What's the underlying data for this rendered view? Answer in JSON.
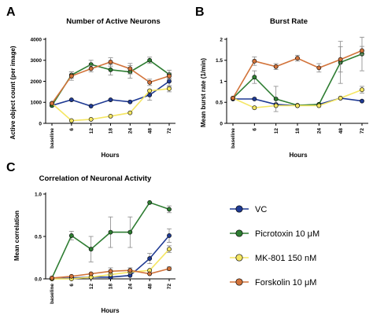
{
  "colors": {
    "VC": "#1f3a93",
    "Picrotoxin": "#2e7d32",
    "MK801": "#f5e663",
    "Forskolin": "#d2733a",
    "error": "#888888"
  },
  "legend": [
    {
      "key": "VC",
      "label": "VC"
    },
    {
      "key": "Picrotoxin",
      "label": "Picrotoxin 10 μM"
    },
    {
      "key": "MK801",
      "label": "MK-801 150 nM"
    },
    {
      "key": "Forskolin",
      "label": "Forskolin 10 μM"
    }
  ],
  "chart_data": [
    {
      "panel": "A",
      "type": "line",
      "title": "Number of Active Neurons",
      "xlabel": "Hours",
      "ylabel": "Active object count (per image)",
      "categories": [
        "baseline",
        "6",
        "12",
        "18",
        "24",
        "48",
        "72"
      ],
      "ylim": [
        0,
        4000
      ],
      "yticks": [
        0,
        1000,
        2000,
        3000,
        4000
      ],
      "series": [
        {
          "key": "VC",
          "values": [
            850,
            1120,
            820,
            1120,
            1020,
            1350,
            2000
          ],
          "err": [
            0,
            0,
            0,
            0,
            0,
            250,
            250
          ]
        },
        {
          "key": "Picrotoxin",
          "values": [
            850,
            2300,
            2800,
            2550,
            2450,
            3000,
            2330
          ],
          "err": [
            0,
            150,
            200,
            250,
            300,
            150,
            200
          ]
        },
        {
          "key": "MK801",
          "values": [
            950,
            130,
            190,
            340,
            500,
            1550,
            1650
          ],
          "err": [
            0,
            0,
            0,
            0,
            0,
            0,
            150
          ]
        },
        {
          "key": "Forskolin",
          "values": [
            950,
            2250,
            2600,
            2920,
            2600,
            1950,
            2250
          ],
          "err": [
            0,
            200,
            150,
            200,
            250,
            150,
            150
          ]
        }
      ]
    },
    {
      "panel": "B",
      "type": "line",
      "title": "Burst Rate",
      "xlabel": "Hours",
      "ylabel": "Mean burst rate (1/min)",
      "categories": [
        "baseline",
        "6",
        "12",
        "18",
        "24",
        "48",
        "72"
      ],
      "ylim": [
        0,
        2.0
      ],
      "yticks": [
        0,
        0.5,
        1.0,
        1.5,
        2.0
      ],
      "series": [
        {
          "key": "VC",
          "values": [
            0.58,
            0.58,
            0.45,
            0.42,
            0.45,
            0.6,
            0.53
          ],
          "err": [
            0,
            0,
            0,
            0,
            0,
            0,
            0
          ]
        },
        {
          "key": "Picrotoxin",
          "values": [
            0.6,
            1.1,
            0.58,
            0.43,
            0.45,
            1.45,
            1.65
          ],
          "err": [
            0,
            0.15,
            0.3,
            0,
            0,
            0.5,
            0.4
          ]
        },
        {
          "key": "MK801",
          "values": [
            0.6,
            0.37,
            0.42,
            0.42,
            0.42,
            0.6,
            0.8
          ],
          "err": [
            0,
            0,
            0,
            0,
            0,
            0,
            0.08
          ]
        },
        {
          "key": "Forskolin",
          "values": [
            0.6,
            1.48,
            1.35,
            1.55,
            1.32,
            1.52,
            1.73
          ],
          "err": [
            0,
            0.1,
            0.07,
            0.07,
            0.1,
            0.3,
            0.1
          ]
        }
      ]
    },
    {
      "panel": "C",
      "type": "line",
      "title": "Correlation of Neuronal Activity",
      "xlabel": "Hours",
      "ylabel": "Mean correlation",
      "categories": [
        "baseline",
        "6",
        "12",
        "18",
        "24",
        "48",
        "72"
      ],
      "ylim": [
        0,
        1.0
      ],
      "yticks": [
        0,
        0.5,
        1.0
      ],
      "ytick_labels": [
        "0.0",
        "0.5",
        "1.0"
      ],
      "series": [
        {
          "key": "VC",
          "values": [
            0.0,
            0.01,
            0.02,
            0.02,
            0.04,
            0.24,
            0.51
          ],
          "err": [
            0,
            0,
            0,
            0,
            0,
            0.06,
            0.08
          ]
        },
        {
          "key": "Picrotoxin",
          "values": [
            0.01,
            0.51,
            0.35,
            0.55,
            0.55,
            0.9,
            0.82
          ],
          "err": [
            0,
            0.05,
            0.15,
            0.18,
            0.18,
            0,
            0.04
          ]
        },
        {
          "key": "MK801",
          "values": [
            0.0,
            0.0,
            0.02,
            0.05,
            0.08,
            0.1,
            0.35
          ],
          "err": [
            0,
            0,
            0,
            0,
            0,
            0,
            0.04
          ]
        },
        {
          "key": "Forskolin",
          "values": [
            0.01,
            0.03,
            0.06,
            0.09,
            0.1,
            0.06,
            0.12
          ],
          "err": [
            0,
            0,
            0,
            0.04,
            0.03,
            0,
            0.02
          ]
        }
      ]
    }
  ]
}
